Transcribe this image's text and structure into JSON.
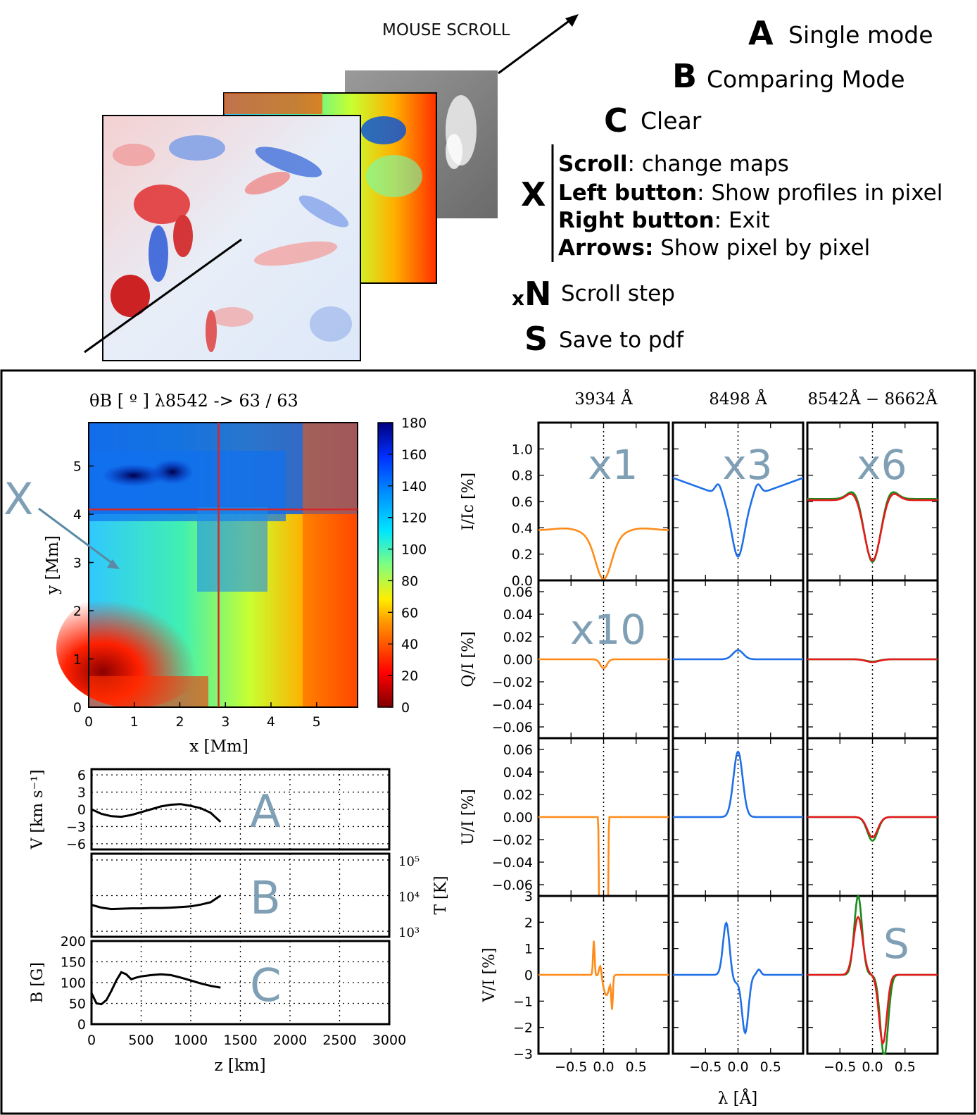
{
  "illustration": {
    "mouse_scroll_label": "MOUSE SCROLL"
  },
  "legend": {
    "items": [
      {
        "key": "A",
        "label": "Single mode"
      },
      {
        "key": "B",
        "label": "Comparing Mode"
      },
      {
        "key": "C",
        "label": "Clear"
      }
    ],
    "x_key": "X",
    "x_items": [
      {
        "bold": "Scroll",
        "rest": ": change maps"
      },
      {
        "bold": "Left button",
        "rest": ": Show profiles in pixel"
      },
      {
        "bold": "Right button",
        "rest": ": Exit"
      },
      {
        "bold": "Arrows:",
        "rest": " Show pixel by pixel"
      }
    ],
    "n_prefix": "x",
    "n_key": "N",
    "n_label": "Scroll step",
    "s_key": "S",
    "s_label": "Save to pdf"
  },
  "map_panel": {
    "title": "θB [ º ]  λ8542 -> 63 / 63",
    "xlabel": "x [Mm]",
    "ylabel": "y [Mm]",
    "xticks": [
      "0",
      "1",
      "2",
      "3",
      "4",
      "5"
    ],
    "yticks": [
      "0",
      "1",
      "2",
      "3",
      "4",
      "5"
    ],
    "colorbar_ticks": [
      "0",
      "20",
      "40",
      "60",
      "80",
      "100",
      "120",
      "140",
      "160",
      "180"
    ],
    "annotation_x": "X",
    "crosshair_x_mm": 2.85,
    "crosshair_y_mm": 4.1
  },
  "colors": {
    "orange": "#ff8c1a",
    "blue": "#1f6fe8",
    "red": "#e41a1c",
    "green": "#1b8c1b",
    "crosshair": "#d62728",
    "annotation": "#7f9fb5"
  },
  "chart_data": [
    {
      "type": "line",
      "name": "atmosphere-panels",
      "xlabel": "z [km]",
      "xticks": [
        "0",
        "500",
        "1000",
        "1500",
        "2000",
        "2500",
        "3000"
      ],
      "panels": [
        {
          "ylabel": "V [km s⁻¹]",
          "yticks": [
            "6",
            "3",
            "0",
            "−3",
            "−6"
          ],
          "ylim": [
            -7,
            7
          ],
          "letter": "A",
          "x": [
            0,
            100,
            200,
            300,
            400,
            500,
            600,
            700,
            800,
            900,
            1000,
            1100,
            1200,
            1300
          ],
          "y": [
            0,
            -0.8,
            -1.2,
            -1.3,
            -1.0,
            -0.5,
            0,
            0.5,
            0.8,
            0.9,
            0.6,
            0.2,
            -0.6,
            -2.2
          ]
        },
        {
          "ylabel": "T [K]",
          "yticks": [
            "10⁵",
            "10⁴",
            "10³"
          ],
          "log": true,
          "letter": "B",
          "x": [
            0,
            100,
            200,
            300,
            400,
            500,
            600,
            700,
            800,
            900,
            1000,
            1100,
            1200,
            1300
          ],
          "y": [
            5500,
            4600,
            4200,
            4300,
            4400,
            4400,
            4500,
            4500,
            4600,
            4800,
            5000,
            5600,
            6500,
            10000
          ]
        },
        {
          "ylabel": "B [G]",
          "yticks": [
            "200",
            "150",
            "100",
            "50",
            "0"
          ],
          "ylim": [
            0,
            200
          ],
          "letter": "C",
          "x": [
            0,
            50,
            100,
            150,
            200,
            250,
            300,
            350,
            400,
            450,
            500,
            600,
            700,
            800,
            900,
            1000,
            1100,
            1200,
            1300
          ],
          "y": [
            75,
            50,
            48,
            58,
            80,
            105,
            125,
            120,
            108,
            112,
            115,
            118,
            120,
            118,
            112,
            105,
            98,
            92,
            88
          ]
        }
      ]
    },
    {
      "type": "line",
      "name": "stokes-profiles",
      "columns": [
        "3934 Å",
        "8498 Å",
        "8542Å − 8662Å"
      ],
      "multipliers": [
        "x1",
        "x3",
        "x6"
      ],
      "q_multiplier": "x10",
      "xlabel": "λ [Å]",
      "xticks": [
        "−0.5",
        "0.0",
        "0.5"
      ],
      "rows": [
        {
          "ylabel": "I/Ic [%]",
          "ylim": [
            0,
            1.2
          ],
          "yticks": [
            "0.0",
            "0.2",
            "0.4",
            "0.6",
            "0.8",
            "1.0"
          ]
        },
        {
          "ylabel": "Q/I [%]",
          "ylim": [
            -0.07,
            0.07
          ],
          "yticks": [
            "0.06",
            "0.04",
            "0.02",
            "0.00",
            "−0.02",
            "−0.04",
            "−0.06"
          ]
        },
        {
          "ylabel": "U/I [%]",
          "ylim": [
            -0.07,
            0.07
          ],
          "yticks": [
            "0.06",
            "0.04",
            "0.02",
            "0.00",
            "−0.02",
            "−0.04",
            "−0.06"
          ]
        },
        {
          "ylabel": "V/I [%]",
          "ylim": [
            -3,
            3
          ],
          "yticks": [
            "3",
            "2",
            "1",
            "0",
            "−1",
            "−2",
            "−3"
          ]
        }
      ],
      "letter_s": "S"
    }
  ]
}
